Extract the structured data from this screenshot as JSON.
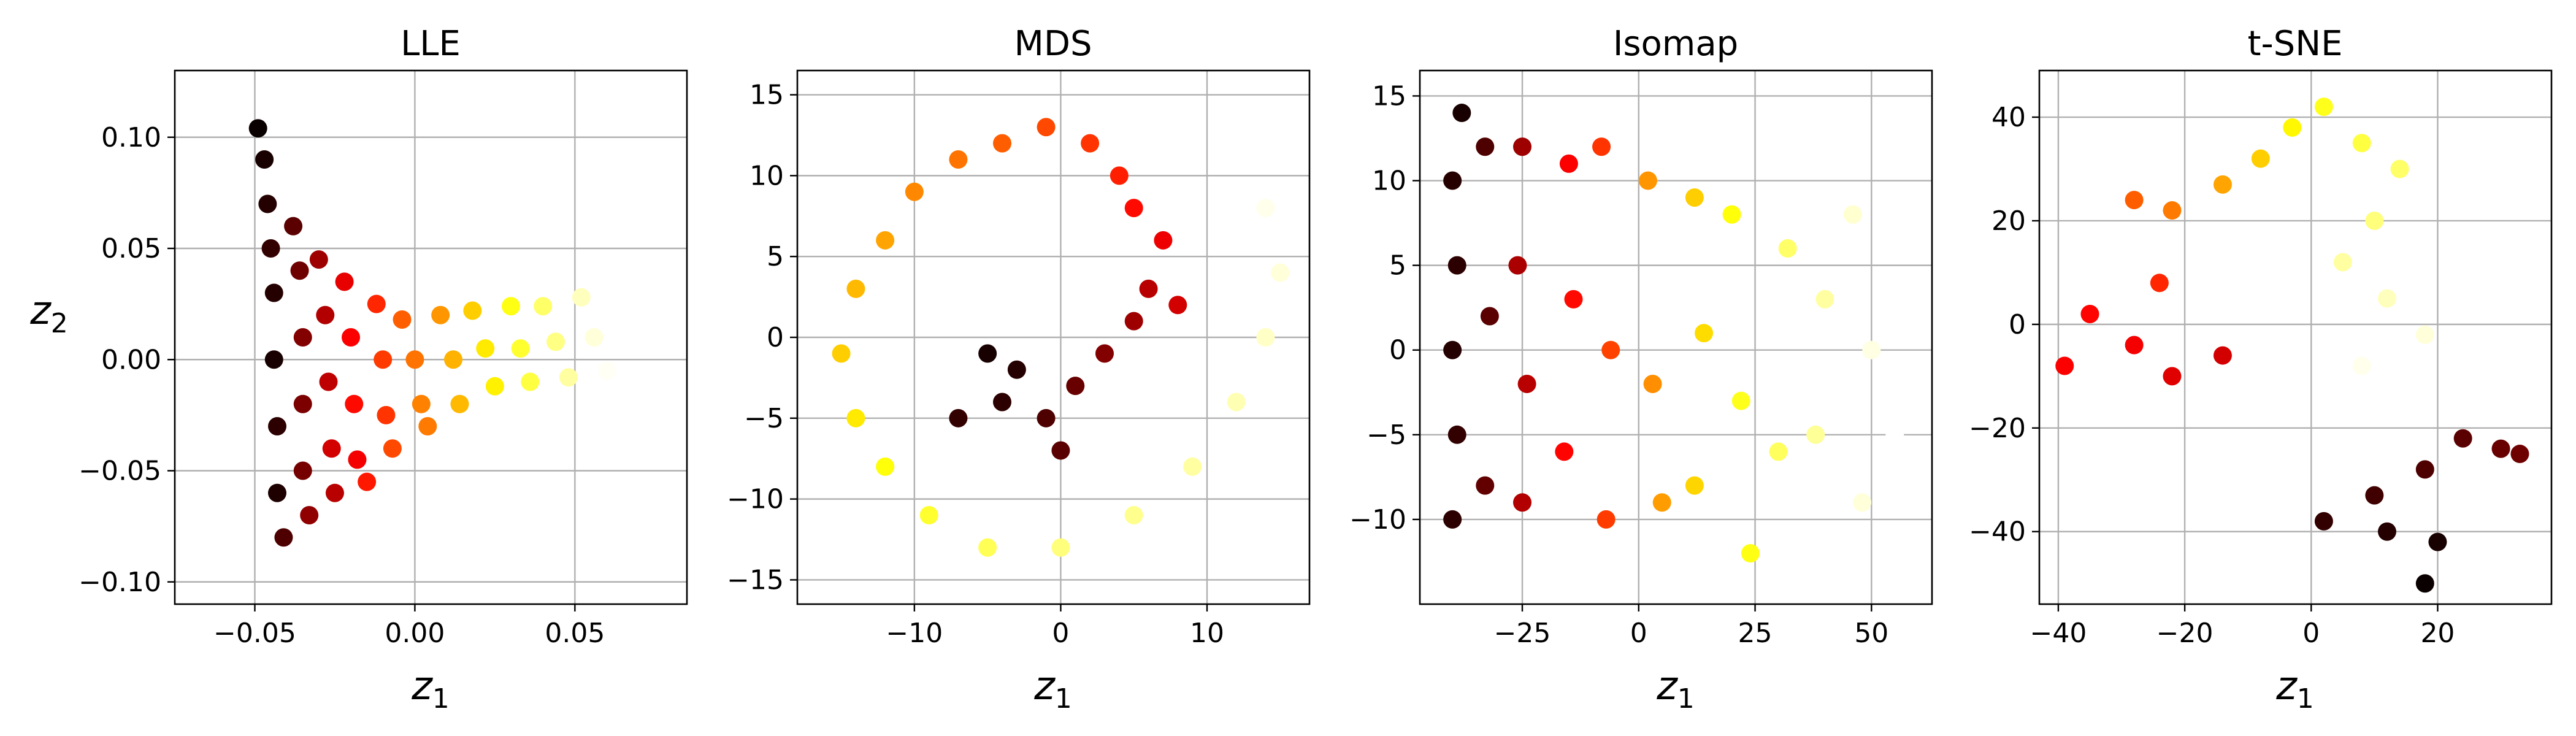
{
  "chart_data": [
    {
      "type": "scatter",
      "title": "LLE",
      "xlabel": "z1",
      "ylabel": "z2",
      "colormap": "hot",
      "xlim": [
        -0.075,
        0.085
      ],
      "ylim": [
        -0.11,
        0.13
      ],
      "xticks": [
        -0.05,
        0.0,
        0.05
      ],
      "xtick_labels": [
        "−0.05",
        "0.00",
        "0.05"
      ],
      "yticks": [
        -0.1,
        -0.05,
        0.0,
        0.05,
        0.1
      ],
      "ytick_labels": [
        "−0.10",
        "−0.05",
        "0.00",
        "0.05",
        "0.10"
      ],
      "grid": true,
      "points": [
        {
          "x": -0.049,
          "y": 0.104,
          "c": 0.0
        },
        {
          "x": -0.047,
          "y": 0.09,
          "c": 0.02
        },
        {
          "x": -0.046,
          "y": 0.07,
          "c": 0.04
        },
        {
          "x": -0.045,
          "y": 0.05,
          "c": 0.06
        },
        {
          "x": -0.044,
          "y": 0.03,
          "c": 0.04
        },
        {
          "x": -0.044,
          "y": 0.0,
          "c": 0.02
        },
        {
          "x": -0.043,
          "y": -0.03,
          "c": 0.05
        },
        {
          "x": -0.043,
          "y": -0.06,
          "c": 0.03
        },
        {
          "x": -0.041,
          "y": -0.08,
          "c": 0.1
        },
        {
          "x": -0.038,
          "y": 0.06,
          "c": 0.12
        },
        {
          "x": -0.036,
          "y": 0.04,
          "c": 0.15
        },
        {
          "x": -0.035,
          "y": 0.01,
          "c": 0.18
        },
        {
          "x": -0.035,
          "y": -0.02,
          "c": 0.17
        },
        {
          "x": -0.035,
          "y": -0.05,
          "c": 0.16
        },
        {
          "x": -0.033,
          "y": -0.07,
          "c": 0.2
        },
        {
          "x": -0.03,
          "y": 0.045,
          "c": 0.22
        },
        {
          "x": -0.028,
          "y": 0.02,
          "c": 0.25
        },
        {
          "x": -0.027,
          "y": -0.01,
          "c": 0.27
        },
        {
          "x": -0.026,
          "y": -0.04,
          "c": 0.3
        },
        {
          "x": -0.025,
          "y": -0.06,
          "c": 0.26
        },
        {
          "x": -0.022,
          "y": 0.035,
          "c": 0.33
        },
        {
          "x": -0.02,
          "y": 0.01,
          "c": 0.36
        },
        {
          "x": -0.019,
          "y": -0.02,
          "c": 0.38
        },
        {
          "x": -0.018,
          "y": -0.045,
          "c": 0.35
        },
        {
          "x": -0.015,
          "y": -0.055,
          "c": 0.4
        },
        {
          "x": -0.012,
          "y": 0.025,
          "c": 0.42
        },
        {
          "x": -0.01,
          "y": 0.0,
          "c": 0.45
        },
        {
          "x": -0.009,
          "y": -0.025,
          "c": 0.44
        },
        {
          "x": -0.007,
          "y": -0.04,
          "c": 0.47
        },
        {
          "x": -0.004,
          "y": 0.018,
          "c": 0.5
        },
        {
          "x": 0.0,
          "y": 0.0,
          "c": 0.53
        },
        {
          "x": 0.002,
          "y": -0.02,
          "c": 0.55
        },
        {
          "x": 0.004,
          "y": -0.03,
          "c": 0.54
        },
        {
          "x": 0.008,
          "y": 0.02,
          "c": 0.58
        },
        {
          "x": 0.012,
          "y": 0.0,
          "c": 0.62
        },
        {
          "x": 0.014,
          "y": -0.02,
          "c": 0.63
        },
        {
          "x": 0.018,
          "y": 0.022,
          "c": 0.66
        },
        {
          "x": 0.022,
          "y": 0.005,
          "c": 0.7
        },
        {
          "x": 0.025,
          "y": -0.012,
          "c": 0.71
        },
        {
          "x": 0.03,
          "y": 0.024,
          "c": 0.75
        },
        {
          "x": 0.033,
          "y": 0.005,
          "c": 0.78
        },
        {
          "x": 0.036,
          "y": -0.01,
          "c": 0.8
        },
        {
          "x": 0.04,
          "y": 0.024,
          "c": 0.84
        },
        {
          "x": 0.044,
          "y": 0.008,
          "c": 0.87
        },
        {
          "x": 0.048,
          "y": -0.008,
          "c": 0.9
        },
        {
          "x": 0.052,
          "y": 0.028,
          "c": 0.93
        },
        {
          "x": 0.056,
          "y": 0.01,
          "c": 0.96
        },
        {
          "x": 0.06,
          "y": -0.005,
          "c": 0.99
        }
      ]
    },
    {
      "type": "scatter",
      "title": "MDS",
      "xlabel": "z1",
      "ylabel": "",
      "colormap": "hot",
      "xlim": [
        -18,
        17
      ],
      "ylim": [
        -16.5,
        16.5
      ],
      "xticks": [
        -10,
        0,
        10
      ],
      "xtick_labels": [
        "−10",
        "0",
        "10"
      ],
      "yticks": [
        -15,
        -10,
        -5,
        0,
        5,
        10,
        15
      ],
      "ytick_labels": [
        "−15",
        "−10",
        "−5",
        "0",
        "5",
        "10",
        "15"
      ],
      "grid": true,
      "points": [
        {
          "x": -5,
          "y": -1,
          "c": 0.02
        },
        {
          "x": -3,
          "y": -2,
          "c": 0.04
        },
        {
          "x": -4,
          "y": -4,
          "c": 0.05
        },
        {
          "x": -7,
          "y": -5,
          "c": 0.06
        },
        {
          "x": -1,
          "y": -5,
          "c": 0.1
        },
        {
          "x": 1,
          "y": -3,
          "c": 0.14
        },
        {
          "x": 0,
          "y": -7,
          "c": 0.12
        },
        {
          "x": 3,
          "y": -1,
          "c": 0.18
        },
        {
          "x": 5,
          "y": 1,
          "c": 0.22
        },
        {
          "x": 6,
          "y": 3,
          "c": 0.26
        },
        {
          "x": 8,
          "y": 2,
          "c": 0.3
        },
        {
          "x": 7,
          "y": 6,
          "c": 0.34
        },
        {
          "x": 5,
          "y": 8,
          "c": 0.38
        },
        {
          "x": 4,
          "y": 10,
          "c": 0.41
        },
        {
          "x": 2,
          "y": 12,
          "c": 0.44
        },
        {
          "x": -1,
          "y": 13,
          "c": 0.47
        },
        {
          "x": -4,
          "y": 12,
          "c": 0.5
        },
        {
          "x": -7,
          "y": 11,
          "c": 0.53
        },
        {
          "x": -10,
          "y": 9,
          "c": 0.56
        },
        {
          "x": -12,
          "y": 6,
          "c": 0.6
        },
        {
          "x": -14,
          "y": 3,
          "c": 0.63
        },
        {
          "x": -15,
          "y": -1,
          "c": 0.66
        },
        {
          "x": -14,
          "y": -5,
          "c": 0.7
        },
        {
          "x": -12,
          "y": -8,
          "c": 0.74
        },
        {
          "x": -9,
          "y": -11,
          "c": 0.78
        },
        {
          "x": -5,
          "y": -13,
          "c": 0.82
        },
        {
          "x": 0,
          "y": -13,
          "c": 0.86
        },
        {
          "x": 5,
          "y": -11,
          "c": 0.88
        },
        {
          "x": 9,
          "y": -8,
          "c": 0.9
        },
        {
          "x": 12,
          "y": -4,
          "c": 0.92
        },
        {
          "x": 14,
          "y": 0,
          "c": 0.94
        },
        {
          "x": 15,
          "y": 4,
          "c": 0.96
        },
        {
          "x": 14,
          "y": 8,
          "c": 0.98
        },
        {
          "x": 12,
          "y": 11,
          "c": 1.0
        }
      ]
    },
    {
      "type": "scatter",
      "title": "Isomap",
      "xlabel": "z1",
      "ylabel": "",
      "colormap": "hot",
      "xlim": [
        -47,
        63
      ],
      "ylim": [
        -15,
        16.5
      ],
      "xticks": [
        -25,
        0,
        25,
        50
      ],
      "xtick_labels": [
        "−25",
        "0",
        "25",
        "50"
      ],
      "yticks": [
        -10,
        -5,
        0,
        5,
        10,
        15
      ],
      "ytick_labels": [
        "−10",
        "−5",
        "0",
        "5",
        "10",
        "15"
      ],
      "grid": true,
      "points": [
        {
          "x": -38,
          "y": 14,
          "c": 0.02
        },
        {
          "x": -40,
          "y": 10,
          "c": 0.04
        },
        {
          "x": -39,
          "y": 5,
          "c": 0.05
        },
        {
          "x": -40,
          "y": 0,
          "c": 0.04
        },
        {
          "x": -39,
          "y": -5,
          "c": 0.06
        },
        {
          "x": -40,
          "y": -10,
          "c": 0.05
        },
        {
          "x": -33,
          "y": 12,
          "c": 0.1
        },
        {
          "x": -32,
          "y": 2,
          "c": 0.12
        },
        {
          "x": -33,
          "y": -8,
          "c": 0.13
        },
        {
          "x": -25,
          "y": 12,
          "c": 0.22
        },
        {
          "x": -26,
          "y": 5,
          "c": 0.24
        },
        {
          "x": -24,
          "y": -2,
          "c": 0.26
        },
        {
          "x": -25,
          "y": -9,
          "c": 0.25
        },
        {
          "x": -15,
          "y": 11,
          "c": 0.36
        },
        {
          "x": -14,
          "y": 3,
          "c": 0.38
        },
        {
          "x": -16,
          "y": -6,
          "c": 0.37
        },
        {
          "x": -8,
          "y": 12,
          "c": 0.44
        },
        {
          "x": -6,
          "y": 0,
          "c": 0.46
        },
        {
          "x": -7,
          "y": -10,
          "c": 0.45
        },
        {
          "x": 2,
          "y": 10,
          "c": 0.58
        },
        {
          "x": 3,
          "y": -2,
          "c": 0.57
        },
        {
          "x": 5,
          "y": -9,
          "c": 0.59
        },
        {
          "x": 12,
          "y": 9,
          "c": 0.66
        },
        {
          "x": 14,
          "y": 1,
          "c": 0.68
        },
        {
          "x": 12,
          "y": -8,
          "c": 0.67
        },
        {
          "x": 20,
          "y": 8,
          "c": 0.74
        },
        {
          "x": 22,
          "y": -3,
          "c": 0.76
        },
        {
          "x": 24,
          "y": -12,
          "c": 0.75
        },
        {
          "x": 32,
          "y": 6,
          "c": 0.84
        },
        {
          "x": 30,
          "y": -6,
          "c": 0.83
        },
        {
          "x": 40,
          "y": 3,
          "c": 0.9
        },
        {
          "x": 38,
          "y": -5,
          "c": 0.89
        },
        {
          "x": 46,
          "y": 8,
          "c": 0.95
        },
        {
          "x": 50,
          "y": 0,
          "c": 0.97
        },
        {
          "x": 48,
          "y": -9,
          "c": 0.96
        },
        {
          "x": 55,
          "y": -5,
          "c": 1.0
        }
      ]
    },
    {
      "type": "scatter",
      "title": "t-SNE",
      "xlabel": "z1",
      "ylabel": "",
      "colormap": "hot",
      "xlim": [
        -43,
        38
      ],
      "ylim": [
        -54,
        49
      ],
      "xticks": [
        -40,
        -20,
        0,
        20
      ],
      "xtick_labels": [
        "−40",
        "−20",
        "0",
        "20"
      ],
      "yticks": [
        -40,
        -20,
        0,
        20,
        40
      ],
      "ytick_labels": [
        "−40",
        "−20",
        "0",
        "20",
        "40"
      ],
      "grid": true,
      "points": [
        {
          "x": 18,
          "y": -50,
          "c": 0.0
        },
        {
          "x": 20,
          "y": -42,
          "c": 0.02
        },
        {
          "x": 12,
          "y": -40,
          "c": 0.04
        },
        {
          "x": 2,
          "y": -38,
          "c": 0.06
        },
        {
          "x": 10,
          "y": -33,
          "c": 0.08
        },
        {
          "x": 18,
          "y": -28,
          "c": 0.1
        },
        {
          "x": 24,
          "y": -22,
          "c": 0.12
        },
        {
          "x": 30,
          "y": -24,
          "c": 0.14
        },
        {
          "x": 33,
          "y": -25,
          "c": 0.15
        },
        {
          "x": -14,
          "y": -6,
          "c": 0.3
        },
        {
          "x": -22,
          "y": -10,
          "c": 0.32
        },
        {
          "x": -28,
          "y": -4,
          "c": 0.35
        },
        {
          "x": -35,
          "y": 2,
          "c": 0.37
        },
        {
          "x": -39,
          "y": -8,
          "c": 0.36
        },
        {
          "x": -24,
          "y": 8,
          "c": 0.42
        },
        {
          "x": -28,
          "y": 24,
          "c": 0.5
        },
        {
          "x": -22,
          "y": 22,
          "c": 0.54
        },
        {
          "x": -14,
          "y": 27,
          "c": 0.6
        },
        {
          "x": -8,
          "y": 32,
          "c": 0.66
        },
        {
          "x": -3,
          "y": 38,
          "c": 0.72
        },
        {
          "x": 2,
          "y": 42,
          "c": 0.76
        },
        {
          "x": 8,
          "y": 35,
          "c": 0.8
        },
        {
          "x": 14,
          "y": 30,
          "c": 0.84
        },
        {
          "x": 10,
          "y": 20,
          "c": 0.86
        },
        {
          "x": 5,
          "y": 12,
          "c": 0.9
        },
        {
          "x": 12,
          "y": 5,
          "c": 0.93
        },
        {
          "x": 18,
          "y": -2,
          "c": 0.96
        },
        {
          "x": 8,
          "y": -8,
          "c": 0.98
        },
        {
          "x": -4,
          "y": -18,
          "c": 1.0
        }
      ]
    }
  ]
}
